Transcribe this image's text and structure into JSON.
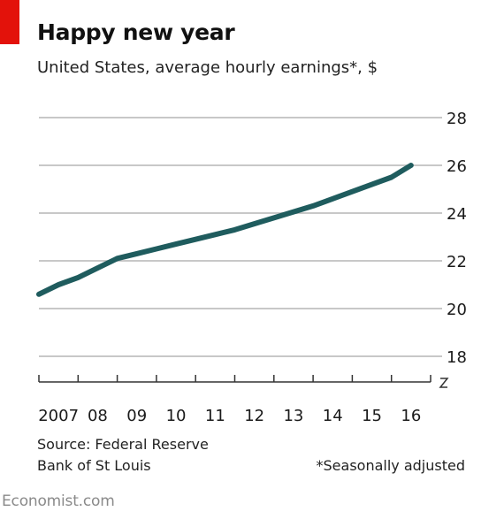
{
  "header": {
    "title": "Happy new year",
    "subtitle": "United States, average hourly earnings*, $"
  },
  "footer": {
    "source_line1": "Source: Federal Reserve",
    "source_line2": "Bank of St Louis",
    "footnote": "*Seasonally adjusted",
    "brand": "Economist.com"
  },
  "colors": {
    "accent": "#e3120b",
    "line": "#1f5c5e",
    "grid": "#c8c8c8"
  },
  "chart_data": {
    "type": "line",
    "title": "Happy new year",
    "subtitle": "United States, average hourly earnings*, $",
    "xlabel": "",
    "ylabel": "",
    "x_tick_labels": [
      "2007",
      "08",
      "09",
      "10",
      "11",
      "12",
      "13",
      "14",
      "15",
      "16"
    ],
    "y_ticks": [
      18,
      20,
      22,
      24,
      26,
      28
    ],
    "ylim": [
      18,
      28
    ],
    "xlim": [
      2007.0,
      2017.0
    ],
    "y_axis_position": "right",
    "axis_break": true,
    "grid": true,
    "legend": "none",
    "series": [
      {
        "values": [
          {
            "x": 2007.0,
            "y": 20.6
          },
          {
            "x": 2007.5,
            "y": 21.0
          },
          {
            "x": 2008.0,
            "y": 21.3
          },
          {
            "x": 2008.5,
            "y": 21.7
          },
          {
            "x": 2009.0,
            "y": 22.1
          },
          {
            "x": 2009.5,
            "y": 22.3
          },
          {
            "x": 2010.0,
            "y": 22.5
          },
          {
            "x": 2010.5,
            "y": 22.7
          },
          {
            "x": 2011.0,
            "y": 22.9
          },
          {
            "x": 2011.5,
            "y": 23.1
          },
          {
            "x": 2012.0,
            "y": 23.3
          },
          {
            "x": 2012.5,
            "y": 23.55
          },
          {
            "x": 2013.0,
            "y": 23.8
          },
          {
            "x": 2013.5,
            "y": 24.05
          },
          {
            "x": 2014.0,
            "y": 24.3
          },
          {
            "x": 2014.5,
            "y": 24.6
          },
          {
            "x": 2015.0,
            "y": 24.9
          },
          {
            "x": 2015.5,
            "y": 25.2
          },
          {
            "x": 2016.0,
            "y": 25.5
          },
          {
            "x": 2016.5,
            "y": 26.0
          }
        ]
      }
    ]
  }
}
